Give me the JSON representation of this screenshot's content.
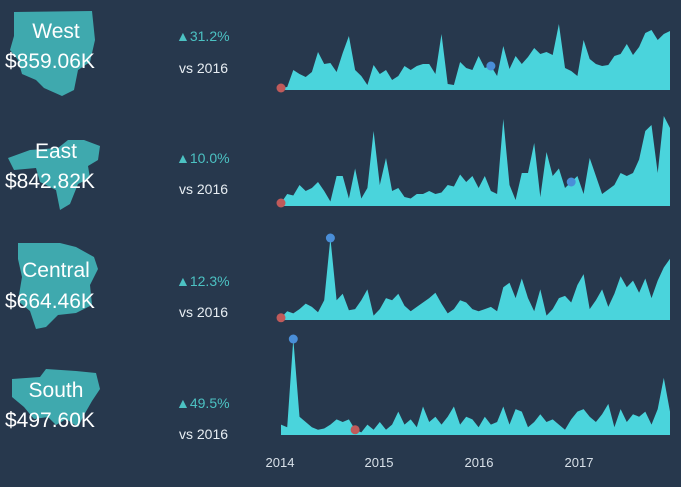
{
  "colors": {
    "background": "#27384d",
    "area": "#4ad4dc",
    "map": "#3fa9ae",
    "max_marker": "#4a8ed8",
    "min_marker": "#c05a5a",
    "growth": "#4cc2c3"
  },
  "x_axis_labels": [
    "2014",
    "2015",
    "2016",
    "2017"
  ],
  "chart_data": [
    {
      "type": "area",
      "region": "West",
      "total": "$859.06K",
      "growth": "31.2%",
      "comparison": "vs 2016",
      "x_start": "2014-01",
      "x_end": "2017-12",
      "max_point": "2016-11",
      "min_point": "2014-01",
      "values": [
        2,
        3,
        20,
        16,
        13,
        18,
        38,
        26,
        27,
        18,
        37,
        54,
        20,
        14,
        5,
        25,
        16,
        20,
        10,
        14,
        24,
        20,
        24,
        26,
        26,
        16,
        56,
        6,
        5,
        28,
        22,
        20,
        34,
        22,
        24,
        14,
        44,
        21,
        34,
        26,
        33,
        42,
        36,
        38,
        35,
        66,
        22,
        19,
        14,
        50,
        31,
        26,
        24,
        25,
        34,
        36,
        46,
        35,
        43,
        57,
        60,
        50,
        56,
        59
      ]
    },
    {
      "type": "area",
      "region": "East",
      "total": "$842.82K",
      "growth": "10.0%",
      "comparison": "vs 2016",
      "x_start": "2014-01",
      "x_end": "2017-12",
      "max_point": "2017-12",
      "min_point": "2014-01",
      "values": [
        2,
        8,
        7,
        14,
        10,
        12,
        16,
        10,
        3,
        20,
        20,
        5,
        25,
        5,
        12,
        50,
        14,
        32,
        10,
        12,
        6,
        5,
        8,
        8,
        10,
        8,
        9,
        14,
        13,
        21,
        16,
        20,
        12,
        20,
        10,
        8,
        58,
        14,
        4,
        22,
        22,
        42,
        6,
        36,
        20,
        25,
        12,
        16,
        20,
        8,
        32,
        20,
        8,
        11,
        14,
        22,
        20,
        22,
        31,
        50,
        54,
        22,
        60,
        52
      ]
    },
    {
      "type": "area",
      "region": "Central",
      "total": "$664.46K",
      "growth": "12.3%",
      "comparison": "vs 2016",
      "x_start": "2014-01",
      "x_end": "2017-12",
      "max_point": "2014-09",
      "min_point": "2014-01",
      "values": [
        2,
        8,
        6,
        10,
        15,
        12,
        7,
        18,
        75,
        18,
        24,
        9,
        10,
        18,
        28,
        4,
        10,
        20,
        18,
        24,
        13,
        8,
        12,
        16,
        20,
        25,
        15,
        6,
        10,
        18,
        16,
        10,
        8,
        10,
        12,
        8,
        30,
        34,
        20,
        38,
        20,
        8,
        28,
        4,
        10,
        20,
        22,
        16,
        32,
        42,
        10,
        18,
        28,
        12,
        24,
        40,
        30,
        36,
        25,
        38,
        20,
        36,
        48,
        56
      ]
    },
    {
      "type": "area",
      "region": "South",
      "total": "$497.60K",
      "growth": "49.5%",
      "comparison": "vs 2016",
      "x_start": "2014-01",
      "x_end": "2017-12",
      "max_point": "2014-03",
      "min_point": "2015-01",
      "values": [
        8,
        6,
        74,
        14,
        10,
        6,
        4,
        5,
        8,
        12,
        10,
        12,
        4,
        2,
        8,
        4,
        10,
        4,
        8,
        18,
        8,
        12,
        6,
        22,
        10,
        14,
        8,
        14,
        22,
        8,
        14,
        12,
        6,
        14,
        8,
        10,
        22,
        8,
        20,
        18,
        6,
        10,
        16,
        10,
        12,
        8,
        4,
        12,
        18,
        20,
        14,
        10,
        16,
        24,
        6,
        20,
        10,
        16,
        14,
        18,
        8,
        20,
        44,
        18
      ]
    }
  ]
}
